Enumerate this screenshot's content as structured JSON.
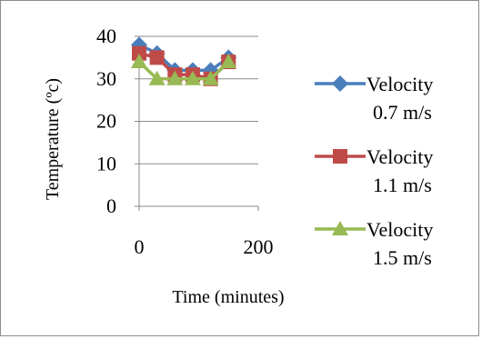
{
  "chart_data": {
    "type": "line",
    "title": "",
    "xlabel": "Time (minutes)",
    "ylabel": "Temperature (ºc)",
    "xlim": [
      0,
      200
    ],
    "ylim": [
      0,
      40
    ],
    "x_ticks": [
      "0",
      "200"
    ],
    "y_ticks": [
      "0",
      "10",
      "20",
      "30",
      "40"
    ],
    "grid": "horizontal",
    "legend_position": "right",
    "series": [
      {
        "name_line1": "Velocity",
        "name_line2": "0.7 m/s",
        "color": "#4a7ebb",
        "marker": "diamond",
        "x": [
          0,
          30,
          60,
          90,
          120,
          150
        ],
        "y": [
          38,
          36,
          32,
          32,
          32,
          35
        ]
      },
      {
        "name_line1": "Velocity",
        "name_line2": "1.1 m/s",
        "color": "#be4b48",
        "marker": "square",
        "x": [
          0,
          30,
          60,
          90,
          120,
          150
        ],
        "y": [
          36,
          35,
          31,
          31,
          30,
          34
        ]
      },
      {
        "name_line1": "Velocity",
        "name_line2": "1.5 m/s",
        "color": "#98b954",
        "marker": "triangle",
        "x": [
          0,
          30,
          60,
          90,
          120,
          150
        ],
        "y": [
          34,
          30,
          30,
          30,
          30,
          34
        ]
      }
    ]
  }
}
